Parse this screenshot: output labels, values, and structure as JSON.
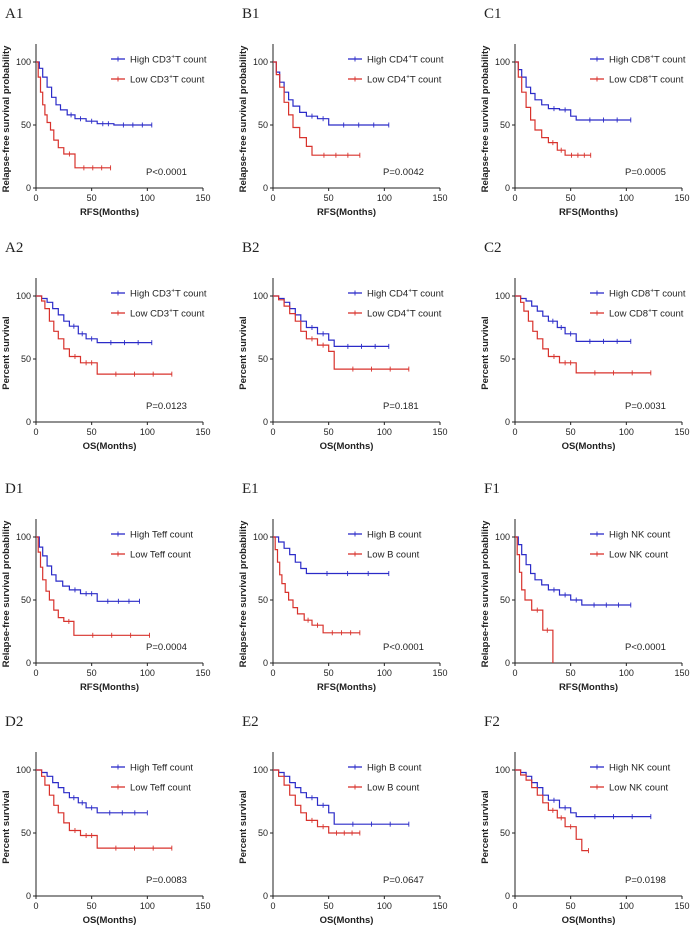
{
  "colors": {
    "high": "#2b2bc8",
    "low": "#d8322c",
    "axis": "#222222"
  },
  "chart_data": [
    {
      "id": "A1",
      "type": "line",
      "title": "A1",
      "xlabel": "RFS(Months)",
      "ylabel": "Relapse-free survival probability",
      "xlim": [
        0,
        150
      ],
      "ylim": [
        0,
        100
      ],
      "xticks": [
        "0",
        "50",
        "100",
        "150"
      ],
      "yticks": [
        "0",
        "50",
        "100"
      ],
      "pvalue": "P<0.0001",
      "series": [
        {
          "name": "High CD3+T count",
          "label_base": "High CD3",
          "label_sup": "+",
          "label_rest": "T count",
          "color": "high",
          "x": [
            0,
            3,
            6,
            10,
            14,
            18,
            22,
            28,
            35,
            45,
            55,
            70,
            104
          ],
          "y": [
            100,
            95,
            88,
            80,
            72,
            66,
            62,
            58,
            55,
            53,
            51,
            50,
            50
          ]
        },
        {
          "name": "Low CD3+T count",
          "label_base": "Low CD3",
          "label_sup": "+",
          "label_rest": "T count",
          "color": "low",
          "x": [
            0,
            2,
            4,
            6,
            8,
            10,
            13,
            16,
            20,
            25,
            35,
            67
          ],
          "y": [
            100,
            88,
            76,
            66,
            58,
            52,
            46,
            38,
            32,
            27,
            16,
            16
          ]
        }
      ]
    },
    {
      "id": "B1",
      "type": "line",
      "title": "B1",
      "xlabel": "RFS(Months)",
      "ylabel": "Relapse-free survival probability",
      "xlim": [
        0,
        150
      ],
      "ylim": [
        0,
        100
      ],
      "xticks": [
        "0",
        "50",
        "100",
        "150"
      ],
      "yticks": [
        "0",
        "50",
        "100"
      ],
      "pvalue": "P=0.0042",
      "series": [
        {
          "name": "High CD4+T count",
          "label_base": "High CD4",
          "label_sup": "+",
          "label_rest": "T count",
          "color": "high",
          "x": [
            0,
            3,
            6,
            10,
            14,
            18,
            24,
            30,
            40,
            50,
            104
          ],
          "y": [
            100,
            92,
            84,
            76,
            70,
            65,
            60,
            57,
            55,
            50,
            50
          ]
        },
        {
          "name": "Low CD4+T count",
          "label_base": "Low CD4",
          "label_sup": "+",
          "label_rest": "T count",
          "color": "low",
          "x": [
            0,
            3,
            6,
            10,
            14,
            18,
            24,
            30,
            35,
            78
          ],
          "y": [
            100,
            90,
            80,
            68,
            58,
            48,
            40,
            33,
            26,
            26
          ]
        }
      ]
    },
    {
      "id": "C1",
      "type": "line",
      "title": "C1",
      "xlabel": "RFS(Months)",
      "ylabel": "Relapse-free survival probability",
      "xlim": [
        0,
        150
      ],
      "ylim": [
        0,
        100
      ],
      "xticks": [
        "0",
        "50",
        "100",
        "150"
      ],
      "yticks": [
        "0",
        "50",
        "100"
      ],
      "pvalue": "P=0.0005",
      "series": [
        {
          "name": "High CD8+T count",
          "label_base": "High CD8",
          "label_sup": "+",
          "label_rest": "T count",
          "color": "high",
          "x": [
            0,
            3,
            6,
            10,
            14,
            18,
            24,
            30,
            40,
            50,
            55,
            104
          ],
          "y": [
            100,
            94,
            88,
            80,
            75,
            70,
            66,
            63,
            62,
            57,
            54,
            54
          ]
        },
        {
          "name": "Low CD8+T count",
          "label_base": "Low CD8",
          "label_sup": "+",
          "label_rest": "T count",
          "color": "low",
          "x": [
            0,
            3,
            6,
            10,
            14,
            18,
            24,
            30,
            38,
            45,
            68
          ],
          "y": [
            100,
            88,
            76,
            64,
            54,
            46,
            40,
            36,
            30,
            26,
            26
          ]
        }
      ]
    },
    {
      "id": "A2",
      "type": "line",
      "title": "A2",
      "xlabel": "OS(Months)",
      "ylabel": "Percent survival",
      "xlim": [
        0,
        150
      ],
      "ylim": [
        0,
        100
      ],
      "xticks": [
        "0",
        "50",
        "100",
        "150"
      ],
      "yticks": [
        "0",
        "50",
        "100"
      ],
      "pvalue": "P=0.0123",
      "series": [
        {
          "name": "High CD3+T count",
          "label_base": "High CD3",
          "label_sup": "+",
          "label_rest": "T count",
          "color": "high",
          "x": [
            0,
            5,
            10,
            15,
            20,
            25,
            30,
            38,
            45,
            55,
            104
          ],
          "y": [
            100,
            98,
            95,
            90,
            85,
            80,
            76,
            70,
            66,
            63,
            63
          ]
        },
        {
          "name": "Low CD3+T count",
          "label_base": "Low CD3",
          "label_sup": "+",
          "label_rest": "T count",
          "color": "low",
          "x": [
            0,
            5,
            8,
            12,
            16,
            20,
            25,
            30,
            40,
            55,
            122
          ],
          "y": [
            100,
            96,
            90,
            80,
            72,
            66,
            58,
            52,
            47,
            38,
            38
          ]
        }
      ]
    },
    {
      "id": "B2",
      "type": "line",
      "title": "B2",
      "xlabel": "OS(Months)",
      "ylabel": "Percent survival",
      "xlim": [
        0,
        150
      ],
      "ylim": [
        0,
        100
      ],
      "xticks": [
        "0",
        "50",
        "100",
        "150"
      ],
      "yticks": [
        "0",
        "50",
        "100"
      ],
      "pvalue": "P=0.181",
      "series": [
        {
          "name": "High CD4+T count",
          "label_base": "High CD4",
          "label_sup": "+",
          "label_rest": "T count",
          "color": "high",
          "x": [
            0,
            5,
            10,
            15,
            20,
            25,
            30,
            40,
            50,
            55,
            104
          ],
          "y": [
            100,
            98,
            95,
            90,
            85,
            80,
            75,
            70,
            65,
            60,
            60
          ]
        },
        {
          "name": "Low CD4+T count",
          "label_base": "Low CD4",
          "label_sup": "+",
          "label_rest": "T count",
          "color": "low",
          "x": [
            0,
            5,
            10,
            15,
            20,
            25,
            30,
            40,
            50,
            55,
            122
          ],
          "y": [
            100,
            97,
            92,
            86,
            80,
            72,
            66,
            61,
            56,
            42,
            42
          ]
        }
      ]
    },
    {
      "id": "C2",
      "type": "line",
      "title": "C2",
      "xlabel": "OS(Months)",
      "ylabel": "Percent survival",
      "xlim": [
        0,
        150
      ],
      "ylim": [
        0,
        100
      ],
      "xticks": [
        "0",
        "50",
        "100",
        "150"
      ],
      "yticks": [
        "0",
        "50",
        "100"
      ],
      "pvalue": "P=0.0031",
      "series": [
        {
          "name": "High CD8+T count",
          "label_base": "High CD8",
          "label_sup": "+",
          "label_rest": "T count",
          "color": "high",
          "x": [
            0,
            5,
            10,
            15,
            20,
            25,
            30,
            38,
            45,
            55,
            104
          ],
          "y": [
            100,
            98,
            96,
            92,
            88,
            84,
            80,
            75,
            70,
            64,
            64
          ]
        },
        {
          "name": "Low CD8+T count",
          "label_base": "Low CD8",
          "label_sup": "+",
          "label_rest": "T count",
          "color": "low",
          "x": [
            0,
            5,
            8,
            12,
            16,
            20,
            25,
            30,
            40,
            55,
            122
          ],
          "y": [
            100,
            95,
            88,
            80,
            72,
            66,
            58,
            52,
            47,
            39,
            39
          ]
        }
      ]
    },
    {
      "id": "D1",
      "type": "line",
      "title": "D1",
      "xlabel": "RFS(Months)",
      "ylabel": "Relapse-free survival probability",
      "xlim": [
        0,
        150
      ],
      "ylim": [
        0,
        100
      ],
      "xticks": [
        "0",
        "50",
        "100",
        "150"
      ],
      "yticks": [
        "0",
        "50",
        "100"
      ],
      "pvalue": "P=0.0004",
      "series": [
        {
          "name": "High Teff count",
          "label_base": "High Teff count",
          "label_sup": "",
          "label_rest": "",
          "color": "high",
          "x": [
            0,
            3,
            6,
            10,
            14,
            18,
            24,
            30,
            40,
            55,
            93
          ],
          "y": [
            100,
            92,
            85,
            77,
            70,
            65,
            61,
            58,
            55,
            49,
            49
          ]
        },
        {
          "name": "Low Teff count",
          "label_base": "Low Teff count",
          "label_sup": "",
          "label_rest": "",
          "color": "low",
          "x": [
            0,
            2,
            4,
            6,
            9,
            12,
            16,
            20,
            25,
            34,
            102
          ],
          "y": [
            100,
            88,
            76,
            66,
            57,
            50,
            42,
            36,
            33,
            22,
            22
          ]
        }
      ]
    },
    {
      "id": "E1",
      "type": "line",
      "title": "E1",
      "xlabel": "RFS(Months)",
      "ylabel": "Relapse-free survival probability",
      "xlim": [
        0,
        150
      ],
      "ylim": [
        0,
        100
      ],
      "xticks": [
        "0",
        "50",
        "100",
        "150"
      ],
      "yticks": [
        "0",
        "50",
        "100"
      ],
      "pvalue": "P<0.0001",
      "series": [
        {
          "name": "High B count",
          "label_base": "High B count",
          "label_sup": "",
          "label_rest": "",
          "color": "high",
          "x": [
            0,
            5,
            10,
            15,
            20,
            25,
            30,
            104
          ],
          "y": [
            100,
            96,
            91,
            86,
            80,
            75,
            71,
            71
          ]
        },
        {
          "name": "Low B count",
          "label_base": "Low B count",
          "label_sup": "",
          "label_rest": "",
          "color": "low",
          "x": [
            0,
            2,
            4,
            6,
            8,
            11,
            14,
            18,
            22,
            28,
            35,
            45,
            78
          ],
          "y": [
            100,
            90,
            80,
            70,
            63,
            56,
            50,
            44,
            39,
            34,
            30,
            24,
            24
          ]
        }
      ]
    },
    {
      "id": "F1",
      "type": "line",
      "title": "F1",
      "xlabel": "RFS(Months)",
      "ylabel": "Relapse-free survival probability",
      "xlim": [
        0,
        150
      ],
      "ylim": [
        0,
        100
      ],
      "xticks": [
        "0",
        "50",
        "100",
        "150"
      ],
      "yticks": [
        "0",
        "50",
        "100"
      ],
      "pvalue": "P<0.0001",
      "series": [
        {
          "name": "High NK count",
          "label_base": "High NK count",
          "label_sup": "",
          "label_rest": "",
          "color": "high",
          "x": [
            0,
            3,
            6,
            10,
            14,
            18,
            24,
            30,
            40,
            50,
            60,
            104
          ],
          "y": [
            100,
            94,
            86,
            78,
            71,
            66,
            62,
            58,
            54,
            50,
            46,
            46
          ]
        },
        {
          "name": "Low NK count",
          "label_base": "Low NK count",
          "label_sup": "",
          "label_rest": "",
          "color": "low",
          "x": [
            0,
            2,
            4,
            6,
            9,
            15,
            25,
            33,
            34
          ],
          "y": [
            100,
            86,
            72,
            58,
            50,
            42,
            26,
            26,
            0
          ]
        }
      ]
    },
    {
      "id": "D2",
      "type": "line",
      "title": "D2",
      "xlabel": "OS(Months)",
      "ylabel": "Percent survival",
      "xlim": [
        0,
        150
      ],
      "ylim": [
        0,
        100
      ],
      "xticks": [
        "0",
        "50",
        "100",
        "150"
      ],
      "yticks": [
        "0",
        "50",
        "100"
      ],
      "pvalue": "P=0.0083",
      "series": [
        {
          "name": "High Teff count",
          "label_base": "High Teff count",
          "label_sup": "",
          "label_rest": "",
          "color": "high",
          "x": [
            0,
            5,
            10,
            15,
            20,
            25,
            30,
            38,
            45,
            55,
            100
          ],
          "y": [
            100,
            98,
            95,
            90,
            86,
            82,
            78,
            74,
            70,
            66,
            66
          ]
        },
        {
          "name": "Low Teff count",
          "label_base": "Low Teff count",
          "label_sup": "",
          "label_rest": "",
          "color": "low",
          "x": [
            0,
            5,
            8,
            12,
            16,
            20,
            25,
            30,
            40,
            55,
            122
          ],
          "y": [
            100,
            95,
            88,
            80,
            72,
            66,
            58,
            52,
            48,
            38,
            38
          ]
        }
      ]
    },
    {
      "id": "E2",
      "type": "line",
      "title": "E2",
      "xlabel": "OS(Months)",
      "ylabel": "Percent survival",
      "xlim": [
        0,
        150
      ],
      "ylim": [
        0,
        100
      ],
      "xticks": [
        "0",
        "50",
        "100",
        "150"
      ],
      "yticks": [
        "0",
        "50",
        "100"
      ],
      "pvalue": "P=0.0647",
      "series": [
        {
          "name": "High B count",
          "label_base": "High B count",
          "label_sup": "",
          "label_rest": "",
          "color": "high",
          "x": [
            0,
            5,
            10,
            15,
            20,
            25,
            30,
            40,
            50,
            55,
            122
          ],
          "y": [
            100,
            98,
            95,
            90,
            86,
            82,
            78,
            72,
            66,
            57,
            57
          ]
        },
        {
          "name": "Low B count",
          "label_base": "Low B count",
          "label_sup": "",
          "label_rest": "",
          "color": "low",
          "x": [
            0,
            5,
            10,
            15,
            20,
            25,
            30,
            40,
            50,
            78
          ],
          "y": [
            100,
            95,
            88,
            80,
            72,
            66,
            60,
            55,
            50,
            50
          ]
        }
      ]
    },
    {
      "id": "F2",
      "type": "line",
      "title": "F2",
      "xlabel": "OS(Months)",
      "ylabel": "Percent survival",
      "xlim": [
        0,
        150
      ],
      "ylim": [
        0,
        100
      ],
      "xticks": [
        "0",
        "50",
        "100",
        "150"
      ],
      "yticks": [
        "0",
        "50",
        "100"
      ],
      "pvalue": "P=0.0198",
      "series": [
        {
          "name": "High NK count",
          "label_base": "High NK count",
          "label_sup": "",
          "label_rest": "",
          "color": "high",
          "x": [
            0,
            5,
            10,
            15,
            20,
            25,
            30,
            40,
            50,
            55,
            122
          ],
          "y": [
            100,
            98,
            95,
            90,
            86,
            80,
            76,
            70,
            66,
            63,
            63
          ]
        },
        {
          "name": "Low NK count",
          "label_base": "Low NK count",
          "label_sup": "",
          "label_rest": "",
          "color": "low",
          "x": [
            0,
            5,
            10,
            15,
            20,
            25,
            30,
            38,
            45,
            55,
            60,
            66
          ],
          "y": [
            100,
            96,
            92,
            86,
            80,
            74,
            68,
            62,
            55,
            45,
            36,
            36
          ]
        }
      ]
    }
  ]
}
